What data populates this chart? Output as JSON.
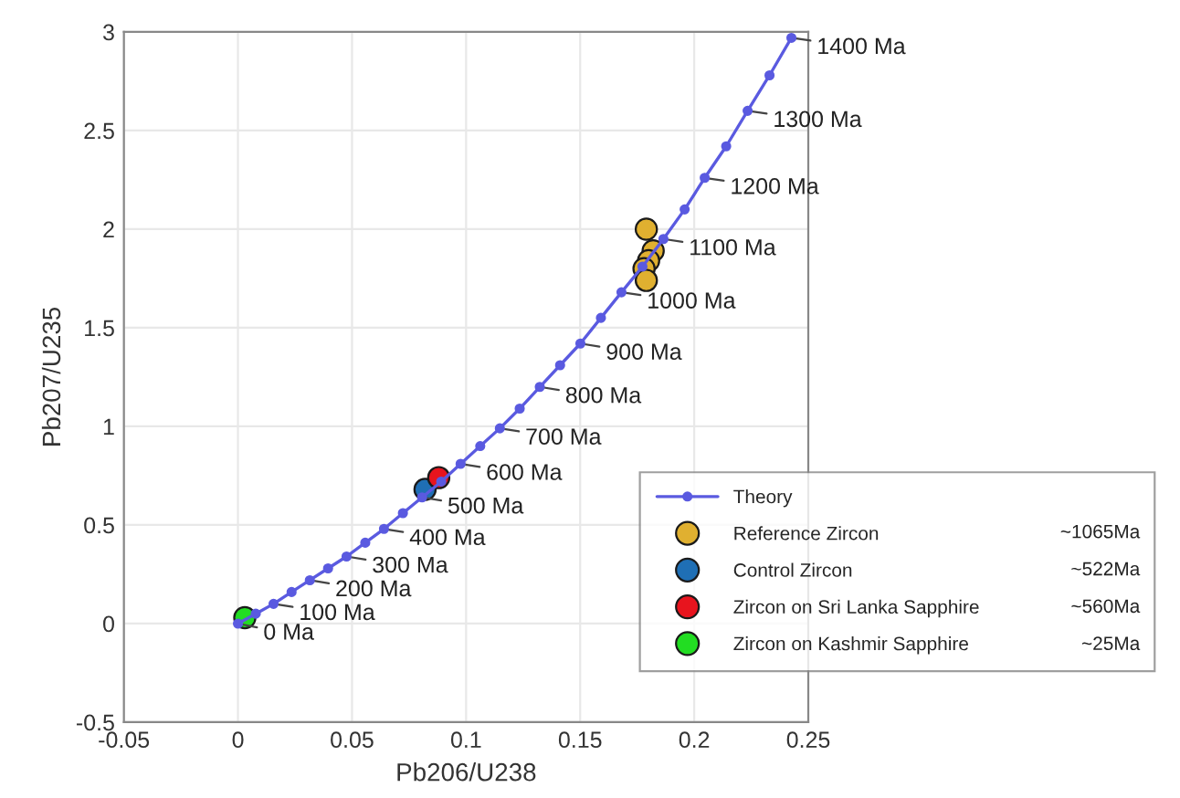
{
  "chart_data": {
    "type": "line",
    "xlabel": "Pb206/U238",
    "ylabel": "Pb207/U235",
    "xlim": [
      -0.05,
      0.25
    ],
    "ylim": [
      -0.5,
      3
    ],
    "xticks": [
      -0.05,
      0,
      0.05,
      0.1,
      0.15,
      0.2,
      0.25
    ],
    "yticks": [
      -0.5,
      0,
      0.5,
      1,
      1.5,
      2,
      2.5,
      3
    ],
    "grid": true,
    "legend": "lower right",
    "series": [
      {
        "name": "Theory",
        "type": "line",
        "color": "#5a5ae0",
        "marker": "circle",
        "line_style": "solid",
        "x": [
          0,
          0.0078,
          0.0156,
          0.0235,
          0.0315,
          0.0395,
          0.0476,
          0.0558,
          0.064,
          0.0723,
          0.0807,
          0.0891,
          0.0976,
          0.1062,
          0.1148,
          0.1235,
          0.1323,
          0.1412,
          0.1501,
          0.1591,
          0.1681,
          0.1773,
          0.1865,
          0.1958,
          0.2046,
          0.214,
          0.2234,
          0.233,
          0.2426
        ],
        "values": [
          0,
          0.05,
          0.1,
          0.16,
          0.22,
          0.28,
          0.34,
          0.41,
          0.48,
          0.56,
          0.64,
          0.72,
          0.81,
          0.9,
          0.99,
          1.09,
          1.2,
          1.31,
          1.42,
          1.55,
          1.68,
          1.81,
          1.95,
          2.1,
          2.26,
          2.42,
          2.6,
          2.78,
          2.97
        ]
      },
      {
        "name": "Reference Zircon",
        "type": "scatter",
        "color": "#e0b030",
        "x": [
          0.179,
          0.182,
          0.18,
          0.178,
          0.179
        ],
        "values": [
          2.0,
          1.89,
          1.84,
          1.8,
          1.74
        ]
      },
      {
        "name": "Control Zircon",
        "type": "scatter",
        "color": "#1f6fb5",
        "x": [
          0.082
        ],
        "values": [
          0.68
        ]
      },
      {
        "name": "Zircon on Sri Lanka Sapphire",
        "type": "scatter",
        "color": "#e8141e",
        "x": [
          0.088
        ],
        "values": [
          0.74
        ]
      },
      {
        "name": "Zircon on Kashmir Sapphire",
        "type": "scatter",
        "color": "#22dd22",
        "x": [
          0.003
        ],
        "values": [
          0.03
        ]
      }
    ],
    "annotations": [
      {
        "text": "0 Ma",
        "x": 0,
        "y": 0
      },
      {
        "text": "100 Ma",
        "x": 0.0156,
        "y": 0.1
      },
      {
        "text": "200 Ma",
        "x": 0.0315,
        "y": 0.22
      },
      {
        "text": "300 Ma",
        "x": 0.0476,
        "y": 0.34
      },
      {
        "text": "400 Ma",
        "x": 0.064,
        "y": 0.48
      },
      {
        "text": "500 Ma",
        "x": 0.0807,
        "y": 0.64
      },
      {
        "text": "600 Ma",
        "x": 0.0976,
        "y": 0.81
      },
      {
        "text": "700 Ma",
        "x": 0.1148,
        "y": 0.99
      },
      {
        "text": "800 Ma",
        "x": 0.1323,
        "y": 1.2
      },
      {
        "text": "900 Ma",
        "x": 0.1501,
        "y": 1.42
      },
      {
        "text": "1000 Ma",
        "x": 0.1681,
        "y": 1.68
      },
      {
        "text": "1100 Ma",
        "x": 0.1865,
        "y": 1.95
      },
      {
        "text": "1200 Ma",
        "x": 0.2046,
        "y": 2.26
      },
      {
        "text": "1300 Ma",
        "x": 0.2234,
        "y": 2.6
      },
      {
        "text": "1400 Ma",
        "x": 0.2426,
        "y": 2.97
      },
      "~1065Ma",
      "~522Ma",
      "~560Ma",
      "~25Ma"
    ]
  }
}
